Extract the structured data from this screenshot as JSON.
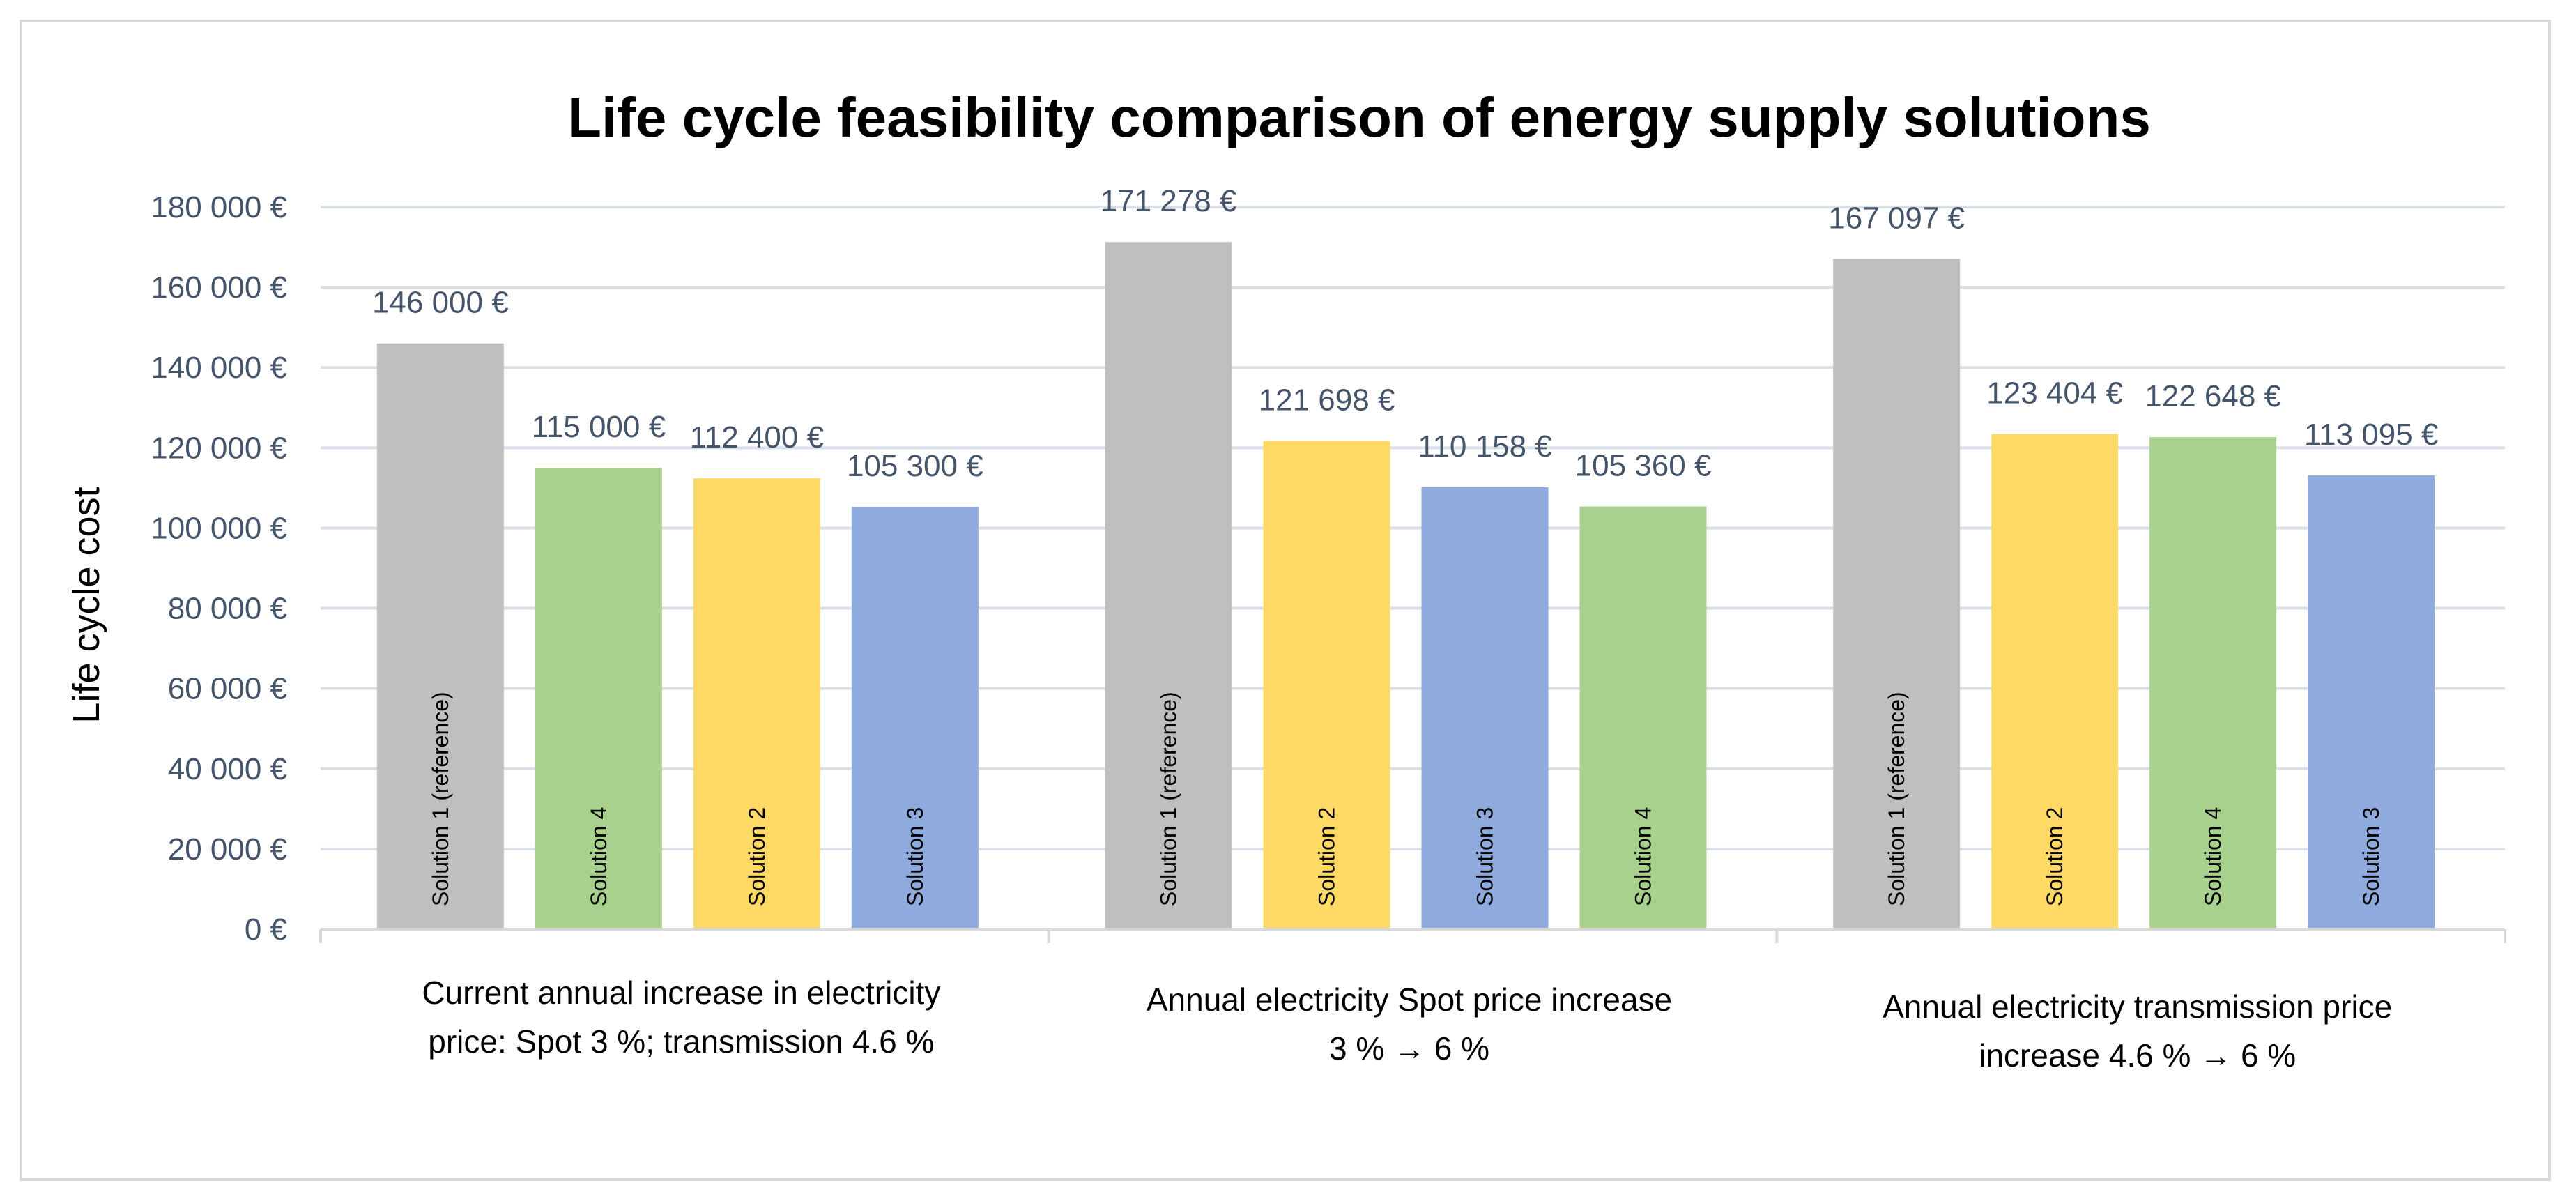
{
  "chart_data": {
    "type": "bar",
    "title": "Life cycle feasibility comparison of energy supply solutions",
    "ylabel": "Life cycle cost",
    "xlabel": "",
    "ylim": [
      0,
      180000
    ],
    "yticks": [
      "0 €",
      "20 000 €",
      "40 000 €",
      "60 000 €",
      "80 000 €",
      "100 000 €",
      "120 000 €",
      "140 000 €",
      "160 000 €",
      "180 000 €"
    ],
    "colors": {
      "Solution 1 (reference)": "#bfbfbf",
      "Solution 2": "#ffd966",
      "Solution 3": "#8faadc",
      "Solution 4": "#a9d18e"
    },
    "groups": [
      {
        "category": "Current annual increase in electricity price: Spot 3 %; transmission 4.6 %",
        "category_lines": [
          "Current annual increase in electricity",
          "price: Spot 3 %; transmission 4.6 %"
        ],
        "bars": [
          {
            "name": "Solution 1 (reference)",
            "value": 146000,
            "label": "146 000 €"
          },
          {
            "name": "Solution 4",
            "value": 115000,
            "label": "115 000 €"
          },
          {
            "name": "Solution 2",
            "value": 112400,
            "label": "112 400 €"
          },
          {
            "name": "Solution 3",
            "value": 105300,
            "label": "105 300 €"
          }
        ]
      },
      {
        "category": "Annual electricity Spot price increase 3 % → 6 %",
        "category_lines": [
          "Annual electricity Spot price increase",
          "3 % → 6 %"
        ],
        "bars": [
          {
            "name": "Solution 1 (reference)",
            "value": 171278,
            "label": "171 278 €"
          },
          {
            "name": "Solution 2",
            "value": 121698,
            "label": "121 698 €"
          },
          {
            "name": "Solution 3",
            "value": 110158,
            "label": "110 158 €"
          },
          {
            "name": "Solution 4",
            "value": 105360,
            "label": "105 360 €"
          }
        ]
      },
      {
        "category": "Annual electricity transmission price increase 4.6 % → 6 %",
        "category_lines": [
          "Annual electricity transmission price",
          "increase 4.6 % → 6 %"
        ],
        "bars": [
          {
            "name": "Solution 1 (reference)",
            "value": 167097,
            "label": "167 097 €"
          },
          {
            "name": "Solution 2",
            "value": 123404,
            "label": "123 404 €"
          },
          {
            "name": "Solution 4",
            "value": 122648,
            "label": "122 648 €"
          },
          {
            "name": "Solution 3",
            "value": 113095,
            "label": "113 095 €"
          }
        ]
      }
    ]
  }
}
